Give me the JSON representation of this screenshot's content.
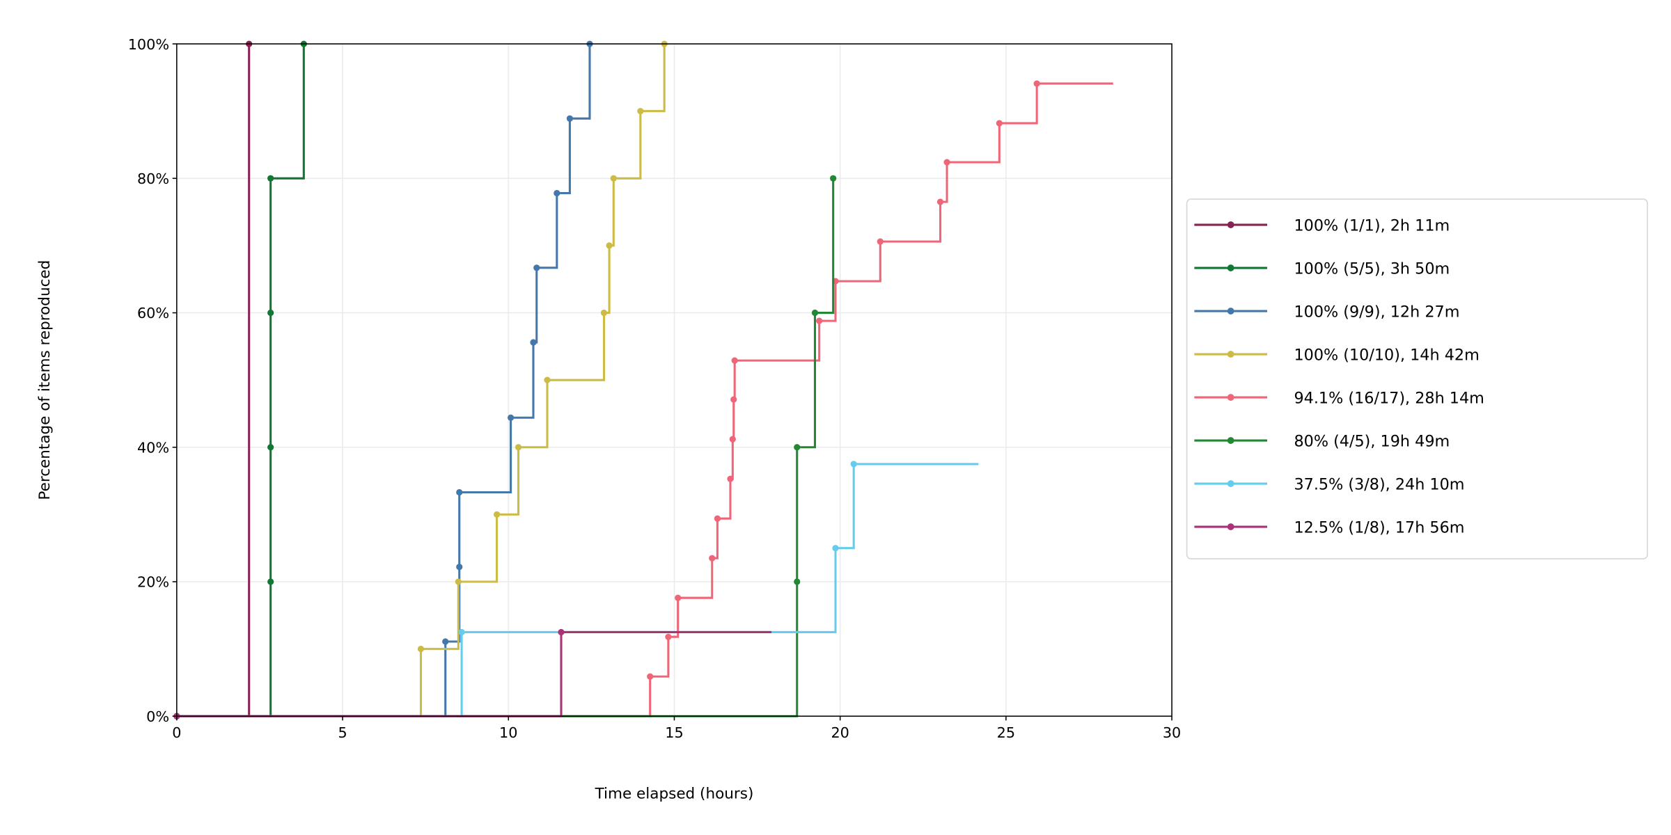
{
  "chart_data": {
    "type": "line",
    "step": "post",
    "title": "",
    "xlabel": "Time elapsed (hours)",
    "ylabel": "Percentage of items reproduced",
    "xlim": [
      0,
      30
    ],
    "ylim": [
      0,
      100
    ],
    "xticks": [
      0,
      5,
      10,
      15,
      20,
      25,
      30
    ],
    "xtick_labels": [
      "0",
      "5",
      "10",
      "15",
      "20",
      "25",
      "30"
    ],
    "yticks": [
      0,
      20,
      40,
      60,
      80,
      100
    ],
    "ytick_labels": [
      "0%",
      "20%",
      "40%",
      "60%",
      "80%",
      "100%"
    ],
    "grid": true,
    "legend_position": "right",
    "series": [
      {
        "name": "100% (1/1), 2h 11m",
        "color": "#882255",
        "x": [
          0,
          2.18
        ],
        "y": [
          0,
          100
        ]
      },
      {
        "name": "100% (5/5), 3h 50m",
        "color": "#117733",
        "x": [
          0,
          2.83,
          2.83,
          2.83,
          2.83,
          3.83
        ],
        "y": [
          0,
          20,
          40,
          60,
          80,
          100
        ]
      },
      {
        "name": "100% (9/9), 12h 27m",
        "color": "#4477AA",
        "x": [
          0,
          8.1,
          8.52,
          8.52,
          10.07,
          10.75,
          10.85,
          11.46,
          11.85,
          12.45
        ],
        "y": [
          0,
          11.1,
          22.2,
          33.3,
          44.4,
          55.6,
          66.7,
          77.8,
          88.9,
          100
        ]
      },
      {
        "name": "100% (10/10), 14h 42m",
        "color": "#CCBB44",
        "x": [
          0,
          7.36,
          8.49,
          9.65,
          10.3,
          11.17,
          12.88,
          13.04,
          13.17,
          13.98,
          14.7
        ],
        "y": [
          0,
          10,
          20,
          30,
          40,
          50,
          60,
          70,
          80,
          90,
          100
        ]
      },
      {
        "name": "94.1% (16/17), 28h 14m",
        "color": "#EE6677",
        "x": [
          0,
          14.27,
          14.82,
          15.11,
          16.14,
          16.3,
          16.69,
          16.76,
          16.79,
          16.82,
          19.37,
          19.86,
          21.21,
          23.02,
          23.22,
          24.8,
          25.93,
          28.23
        ],
        "y": [
          0,
          5.9,
          11.8,
          17.6,
          23.5,
          29.4,
          35.3,
          41.2,
          47.1,
          52.9,
          58.8,
          64.7,
          70.6,
          76.5,
          82.4,
          88.2,
          94.1,
          94.1
        ],
        "last_is_endpoint": true
      },
      {
        "name": "80% (4/5), 19h 49m",
        "color": "#228833",
        "x": [
          0,
          18.7,
          18.7,
          19.24,
          19.79
        ],
        "y": [
          0,
          20,
          40,
          60,
          80
        ]
      },
      {
        "name": "37.5% (3/8), 24h 10m",
        "color": "#66CCEE",
        "x": [
          0,
          8.59,
          19.86,
          20.41,
          24.17
        ],
        "y": [
          0,
          12.5,
          25,
          37.5,
          37.5
        ],
        "last_is_endpoint": true
      },
      {
        "name": "12.5% (1/8), 17h 56m",
        "color": "#AA3377",
        "x": [
          0,
          11.59,
          17.93
        ],
        "y": [
          0,
          12.5,
          12.5
        ],
        "last_is_endpoint": true
      }
    ]
  }
}
